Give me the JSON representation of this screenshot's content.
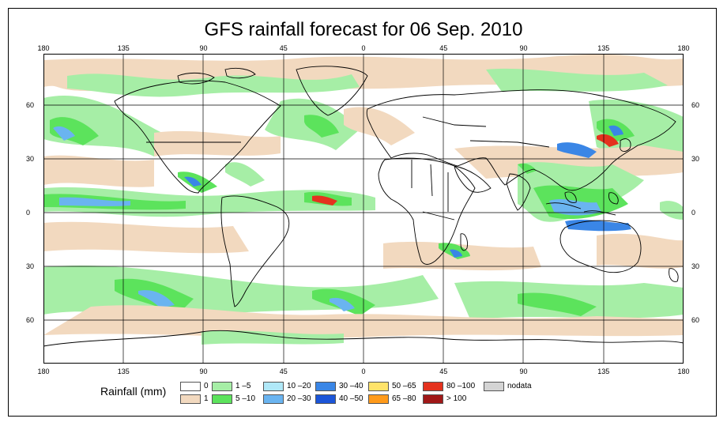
{
  "title": "GFS rainfall forecast for 06 Sep. 2010",
  "map": {
    "lon_ticks": [
      "180",
      "135",
      "90",
      "45",
      "0",
      "45",
      "90",
      "135",
      "180"
    ],
    "lat_ticks": [
      "60",
      "30",
      "0",
      "30",
      "60"
    ],
    "grid": true,
    "projection": "equirectangular"
  },
  "legend": {
    "title": "Rainfall (mm)",
    "items": [
      {
        "label": "0",
        "color": "#ffffff"
      },
      {
        "label": "1",
        "color": "#f2d9bf"
      },
      {
        "label": "1 –5",
        "color": "#a6eea6"
      },
      {
        "label": "5 –10",
        "color": "#5ce35c"
      },
      {
        "label": "10 –20",
        "color": "#b0e8f8"
      },
      {
        "label": "20 –30",
        "color": "#6ab4f0"
      },
      {
        "label": "30 –40",
        "color": "#3a86e6"
      },
      {
        "label": "40 –50",
        "color": "#1b55d8"
      },
      {
        "label": "50 –65",
        "color": "#ffe36a"
      },
      {
        "label": "65 –80",
        "color": "#ff9a1a"
      },
      {
        "label": "80 –100",
        "color": "#e4321e"
      },
      {
        "label": "> 100",
        "color": "#a01818"
      },
      {
        "label": "nodata",
        "color": "#d4d4d4"
      }
    ]
  }
}
